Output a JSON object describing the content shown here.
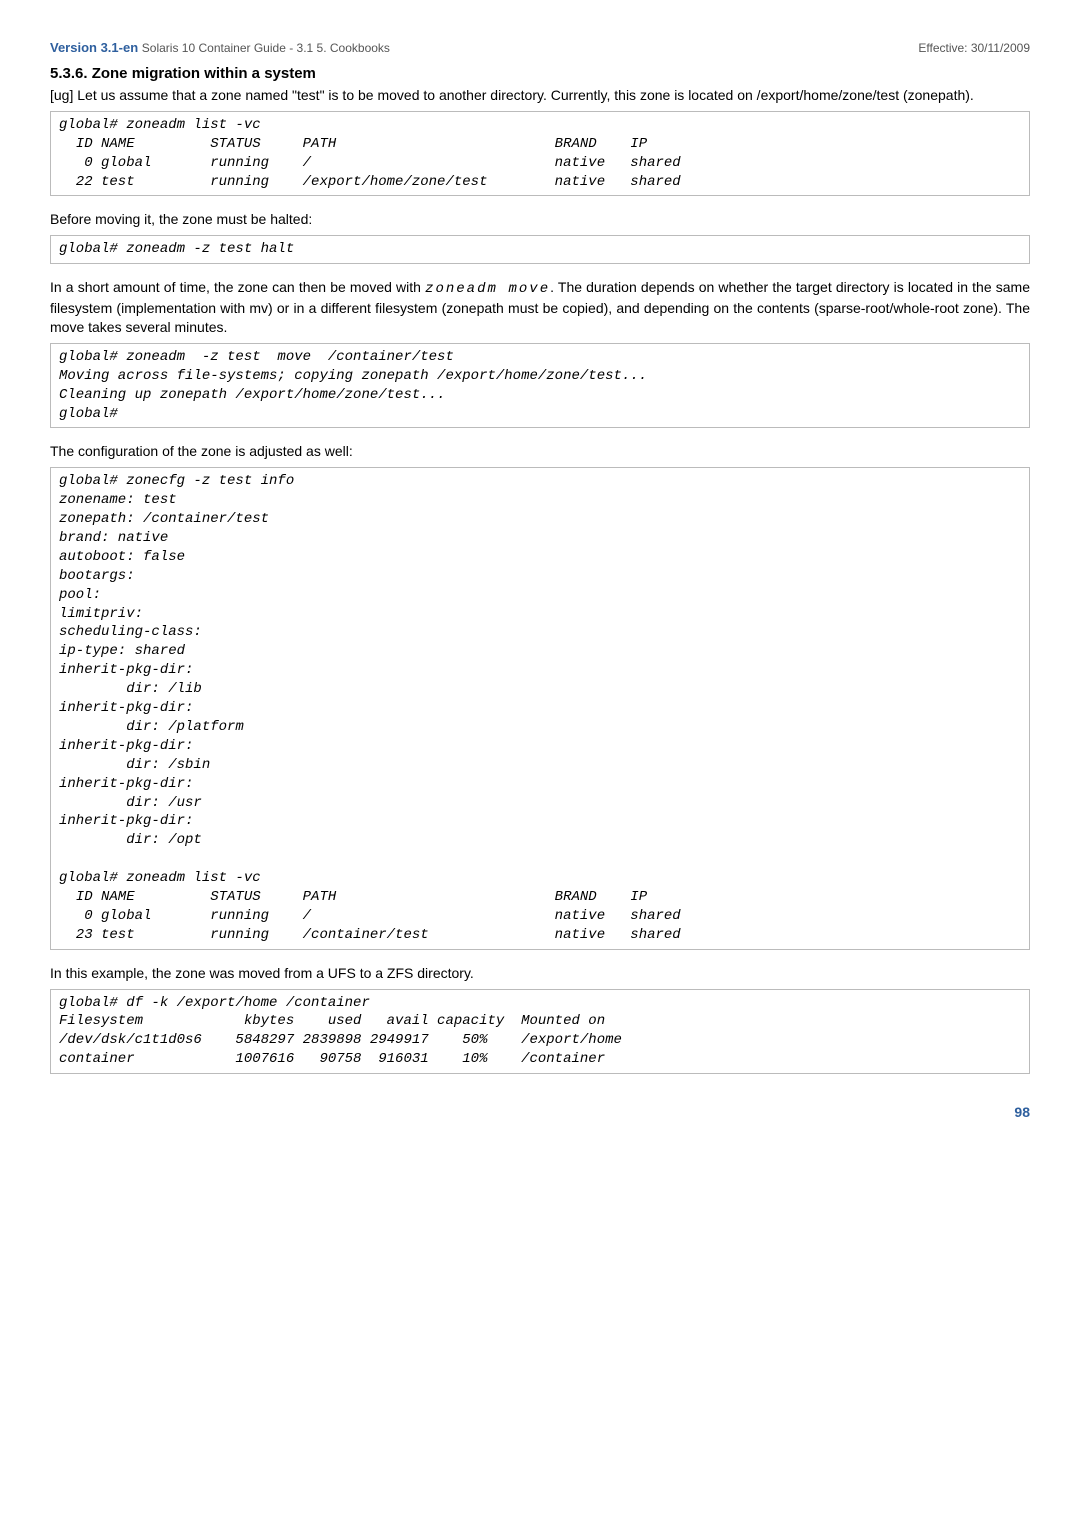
{
  "header": {
    "version": "Version 3.1-en",
    "title": "Solaris 10 Container Guide - 3.1  5. Cookbooks",
    "effective": "Effective: 30/11/2009"
  },
  "section": {
    "number_title": "5.3.6. Zone migration within a system"
  },
  "para1": "[ug] Let us assume that a zone named \"test\" is to be moved to another directory. Currently, this zone is located on /export/home/zone/test (zonepath).",
  "code1": "global# zoneadm list -vc\n  ID NAME         STATUS     PATH                          BRAND    IP\n   0 global       running    /                             native   shared\n  22 test         running    /export/home/zone/test        native   shared",
  "para2": "Before moving it, the zone must be halted:",
  "code2": "global# zoneadm -z test halt",
  "para3a": "In a short amount of time, the zone can then be moved with ",
  "para3cmd": "zoneadm move",
  "para3b": ". The duration depends on whether the target directory is located in the same filesystem (implementation with mv) or in a different filesystem (zonepath must be copied), and depending on the contents (sparse-root/whole-root zone). The move takes several minutes.",
  "code3": "global# zoneadm  -z test  move  /container/test\nMoving across file-systems; copying zonepath /export/home/zone/test...\nCleaning up zonepath /export/home/zone/test...\nglobal#",
  "para4": "The configuration of the zone is adjusted as well:",
  "code4": "global# zonecfg -z test info\nzonename: test\nzonepath: /container/test\nbrand: native\nautoboot: false\nbootargs:\npool:\nlimitpriv:\nscheduling-class:\nip-type: shared\ninherit-pkg-dir:\n        dir: /lib\ninherit-pkg-dir:\n        dir: /platform\ninherit-pkg-dir:\n        dir: /sbin\ninherit-pkg-dir:\n        dir: /usr\ninherit-pkg-dir:\n        dir: /opt\n\nglobal# zoneadm list -vc\n  ID NAME         STATUS     PATH                          BRAND    IP\n   0 global       running    /                             native   shared\n  23 test         running    /container/test               native   shared",
  "para5": "In this example, the zone was moved from a UFS to a ZFS directory.",
  "code5": "global# df -k /export/home /container\nFilesystem            kbytes    used   avail capacity  Mounted on\n/dev/dsk/c1t1d0s6    5848297 2839898 2949917    50%    /export/home\ncontainer            1007616   90758  916031    10%    /container",
  "pagenum": "98"
}
